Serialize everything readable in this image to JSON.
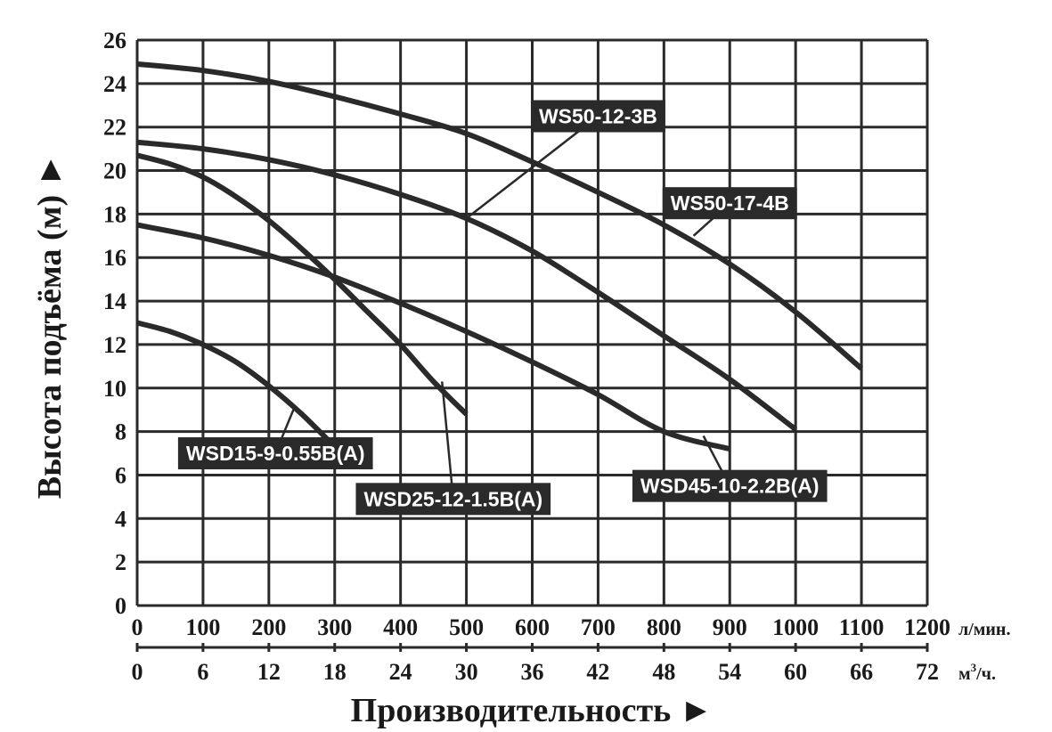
{
  "chart_data": {
    "type": "line",
    "ylabel": "Высота подъёма (м) ►",
    "xlabel": "Производительность ►",
    "x_unit": "л/мин.",
    "x2_unit_base": "м",
    "x2_unit_sup": "3",
    "x2_unit_tail": "/ч.",
    "xlim": [
      0,
      1200
    ],
    "ylim": [
      0,
      26
    ],
    "x_ticks": [
      0,
      100,
      200,
      300,
      400,
      500,
      600,
      700,
      800,
      900,
      1000,
      1100,
      1200
    ],
    "x2_ticks": [
      0,
      6,
      12,
      18,
      24,
      30,
      36,
      42,
      48,
      54,
      60,
      66,
      72
    ],
    "y_ticks": [
      0,
      2,
      4,
      6,
      8,
      10,
      12,
      14,
      16,
      18,
      20,
      22,
      24,
      26
    ],
    "grid": true,
    "line_color": "#2a2a2a",
    "label_bg": "#2a2a2a",
    "series": [
      {
        "name": "WSD15-9-0.55B(A)",
        "x": [
          0,
          50,
          100,
          150,
          200,
          250,
          300
        ],
        "y": [
          13.0,
          12.6,
          12.0,
          11.2,
          10.1,
          8.8,
          7.3
        ],
        "leader_curve_x": 240,
        "leader_curve_y": 9.2,
        "label_anchor_x": 210,
        "label_anchor_y": 7.0
      },
      {
        "name": "WSD25-12-1.5B(A)",
        "x": [
          0,
          50,
          100,
          150,
          200,
          250,
          300,
          350,
          400,
          450,
          500
        ],
        "y": [
          20.7,
          20.3,
          19.7,
          18.8,
          17.7,
          16.4,
          15.0,
          13.5,
          12.0,
          10.3,
          8.8
        ],
        "leader_curve_x": 463,
        "leader_curve_y": 10.3,
        "label_anchor_x": 480,
        "label_anchor_y": 4.9
      },
      {
        "name": "WSD45-10-2.2B(A)",
        "x": [
          0,
          100,
          200,
          300,
          400,
          500,
          600,
          700,
          800,
          900
        ],
        "y": [
          17.5,
          16.9,
          16.1,
          15.1,
          13.9,
          12.6,
          11.2,
          9.7,
          8.0,
          7.2
        ],
        "leader_curve_x": 860,
        "leader_curve_y": 7.8,
        "label_anchor_x": 900,
        "label_anchor_y": 5.5
      },
      {
        "name": "WS50-12-3B",
        "x": [
          0,
          100,
          200,
          300,
          400,
          500,
          600,
          700,
          800,
          900,
          1000
        ],
        "y": [
          21.3,
          21.0,
          20.5,
          19.8,
          18.9,
          17.8,
          16.3,
          14.4,
          12.4,
          10.4,
          8.1
        ],
        "leader_curve_x": 500,
        "leader_curve_y": 17.8,
        "label_anchor_x": 700,
        "label_anchor_y": 22.5
      },
      {
        "name": "WS50-17-4B",
        "x": [
          0,
          100,
          200,
          300,
          400,
          500,
          600,
          700,
          800,
          900,
          1000,
          1100
        ],
        "y": [
          24.9,
          24.6,
          24.1,
          23.4,
          22.6,
          21.7,
          20.4,
          19.0,
          17.5,
          15.7,
          13.5,
          10.9
        ],
        "leader_curve_x": 845,
        "leader_curve_y": 17.0,
        "label_anchor_x": 900,
        "label_anchor_y": 18.5
      }
    ]
  }
}
